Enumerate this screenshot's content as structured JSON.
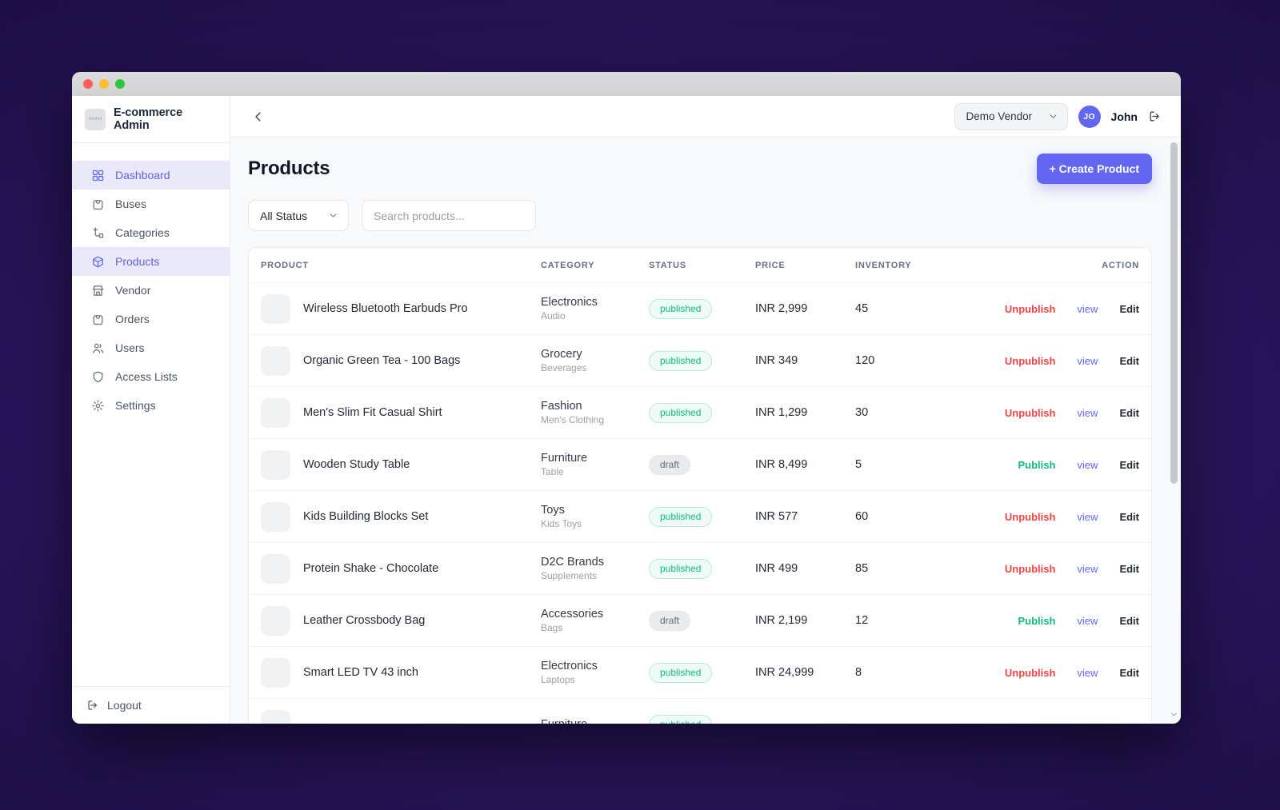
{
  "brand": {
    "logo_text": "bizMart",
    "title": "E-commerce Admin"
  },
  "sidebar": {
    "items": [
      {
        "label": "Dashboard",
        "icon": "grid",
        "active": true
      },
      {
        "label": "Buses",
        "icon": "bag",
        "active": false
      },
      {
        "label": "Categories",
        "icon": "tree",
        "active": false
      },
      {
        "label": "Products",
        "icon": "box",
        "active": true
      },
      {
        "label": "Vendor",
        "icon": "store",
        "active": false
      },
      {
        "label": "Orders",
        "icon": "bag",
        "active": false
      },
      {
        "label": "Users",
        "icon": "users",
        "active": false
      },
      {
        "label": "Access Lists",
        "icon": "shield",
        "active": false
      },
      {
        "label": "Settings",
        "icon": "gear",
        "active": false
      }
    ],
    "logout_label": "Logout"
  },
  "topbar": {
    "vendor_select_value": "Demo Vendor",
    "avatar_initials": "JO",
    "user_name": "John"
  },
  "page": {
    "title": "Products",
    "create_button_label": "+ Create Product",
    "status_filter_value": "All Status",
    "search_placeholder": "Search products..."
  },
  "table": {
    "columns": [
      "PRODUCT",
      "CATEGORY",
      "STATUS",
      "PRICE",
      "INVENTORY",
      "ACTION"
    ],
    "rows": [
      {
        "name": "Wireless Bluetooth Earbuds Pro",
        "category": "Electronics",
        "subcategory": "Audio",
        "status": "published",
        "price": "INR 2,999",
        "inventory": "45",
        "toggle": "Unpublish",
        "view": "view",
        "edit": "Edit"
      },
      {
        "name": "Organic Green Tea - 100 Bags",
        "category": "Grocery",
        "subcategory": "Beverages",
        "status": "published",
        "price": "INR 349",
        "inventory": "120",
        "toggle": "Unpublish",
        "view": "view",
        "edit": "Edit"
      },
      {
        "name": "Men's Slim Fit Casual Shirt",
        "category": "Fashion",
        "subcategory": "Men's Clothing",
        "status": "published",
        "price": "INR 1,299",
        "inventory": "30",
        "toggle": "Unpublish",
        "view": "view",
        "edit": "Edit"
      },
      {
        "name": "Wooden Study Table",
        "category": "Furniture",
        "subcategory": "Table",
        "status": "draft",
        "price": "INR 8,499",
        "inventory": "5",
        "toggle": "Publish",
        "view": "view",
        "edit": "Edit"
      },
      {
        "name": "Kids Building Blocks Set",
        "category": "Toys",
        "subcategory": "Kids Toys",
        "status": "published",
        "price": "INR 577",
        "inventory": "60",
        "toggle": "Unpublish",
        "view": "view",
        "edit": "Edit"
      },
      {
        "name": "Protein Shake - Chocolate",
        "category": "D2C Brands",
        "subcategory": "Supplements",
        "status": "published",
        "price": "INR 499",
        "inventory": "85",
        "toggle": "Unpublish",
        "view": "view",
        "edit": "Edit"
      },
      {
        "name": "Leather Crossbody Bag",
        "category": "Accessories",
        "subcategory": "Bags",
        "status": "draft",
        "price": "INR 2,199",
        "inventory": "12",
        "toggle": "Publish",
        "view": "view",
        "edit": "Edit"
      },
      {
        "name": "Smart LED TV 43 inch",
        "category": "Electronics",
        "subcategory": "Laptops",
        "status": "published",
        "price": "INR 24,999",
        "inventory": "8",
        "toggle": "Unpublish",
        "view": "view",
        "edit": "Edit"
      },
      {
        "name": "",
        "category": "Furniture",
        "subcategory": "",
        "status": "published",
        "price": "",
        "inventory": "",
        "toggle": "",
        "view": "",
        "edit": "",
        "partial": true
      }
    ]
  },
  "colors": {
    "accent": "#6366f1",
    "published": "#10b981",
    "draft": "#6b7280",
    "unpublish": "#ef4444",
    "view_link": "#6366f1",
    "edit_link": "#1f2937"
  }
}
